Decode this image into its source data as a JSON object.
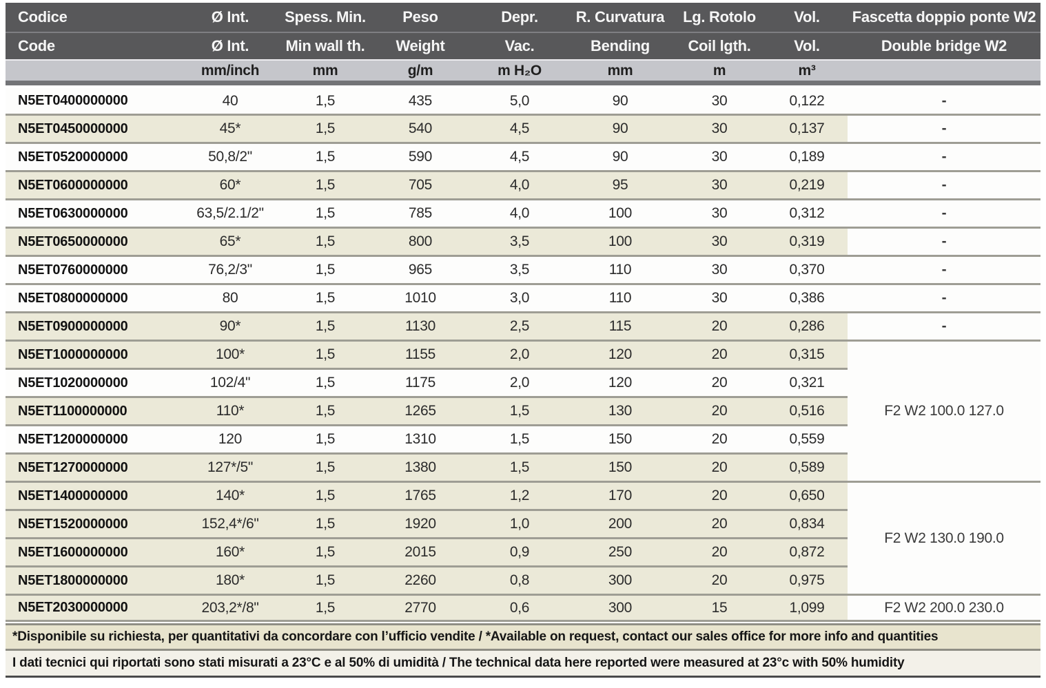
{
  "colors": {
    "header_bg": "#58585a",
    "units_bg": "#c5c6cb",
    "row_shade": "#ebe9d8",
    "row_plain": "#fdfdfc",
    "separator_line": "#9e9d94",
    "footnote_shade": "#e8e4ce"
  },
  "header": {
    "row1": [
      "Codice",
      "Ø Int.",
      "Spess. Min.",
      "Peso",
      "Depr.",
      "R. Curvatura",
      "Lg. Rotolo",
      "Vol.",
      "Fascetta doppio ponte W2"
    ],
    "row2": [
      "Code",
      "Ø Int.",
      "Min wall th.",
      "Weight",
      "Vac.",
      "Bending",
      "Coil lgth.",
      "Vol.",
      "Double bridge W2"
    ],
    "units": [
      "",
      "mm/inch",
      "mm",
      "g/m",
      "m H₂O",
      "mm",
      "m",
      "m³",
      ""
    ]
  },
  "rows": [
    {
      "code": "N5ET0400000000",
      "diameter": "40",
      "min_wall": "1,5",
      "weight": "435",
      "vacuum": "5,0",
      "bending": "90",
      "coil_length": "30",
      "volume": "0,122",
      "bridge": "-",
      "shaded": false
    },
    {
      "code": "N5ET0450000000",
      "diameter": "45*",
      "min_wall": "1,5",
      "weight": "540",
      "vacuum": "4,5",
      "bending": "90",
      "coil_length": "30",
      "volume": "0,137",
      "bridge": "-",
      "shaded": true
    },
    {
      "code": "N5ET0520000000",
      "diameter": "50,8/2\"",
      "min_wall": "1,5",
      "weight": "590",
      "vacuum": "4,5",
      "bending": "90",
      "coil_length": "30",
      "volume": "0,189",
      "bridge": "-",
      "shaded": false
    },
    {
      "code": "N5ET0600000000",
      "diameter": "60*",
      "min_wall": "1,5",
      "weight": "705",
      "vacuum": "4,0",
      "bending": "95",
      "coil_length": "30",
      "volume": "0,219",
      "bridge": "-",
      "shaded": true
    },
    {
      "code": "N5ET0630000000",
      "diameter": "63,5/2.1/2\"",
      "min_wall": "1,5",
      "weight": "785",
      "vacuum": "4,0",
      "bending": "100",
      "coil_length": "30",
      "volume": "0,312",
      "bridge": "-",
      "shaded": false
    },
    {
      "code": "N5ET0650000000",
      "diameter": "65*",
      "min_wall": "1,5",
      "weight": "800",
      "vacuum": "3,5",
      "bending": "100",
      "coil_length": "30",
      "volume": "0,319",
      "bridge": "-",
      "shaded": true
    },
    {
      "code": "N5ET0760000000",
      "diameter": "76,2/3\"",
      "min_wall": "1,5",
      "weight": "965",
      "vacuum": "3,5",
      "bending": "110",
      "coil_length": "30",
      "volume": "0,370",
      "bridge": "-",
      "shaded": false
    },
    {
      "code": "N5ET0800000000",
      "diameter": "80",
      "min_wall": "1,5",
      "weight": "1010",
      "vacuum": "3,0",
      "bending": "110",
      "coil_length": "30",
      "volume": "0,386",
      "bridge": "-",
      "shaded": false
    },
    {
      "code": "N5ET0900000000",
      "diameter": "90*",
      "min_wall": "1,5",
      "weight": "1130",
      "vacuum": "2,5",
      "bending": "115",
      "coil_length": "20",
      "volume": "0,286",
      "bridge": "-",
      "shaded": true
    },
    {
      "code": "N5ET1000000000",
      "diameter": "100*",
      "min_wall": "1,5",
      "weight": "1155",
      "vacuum": "2,0",
      "bending": "120",
      "coil_length": "20",
      "volume": "0,315",
      "shaded": true
    },
    {
      "code": "N5ET1020000000",
      "diameter": "102/4\"",
      "min_wall": "1,5",
      "weight": "1175",
      "vacuum": "2,0",
      "bending": "120",
      "coil_length": "20",
      "volume": "0,321",
      "shaded": false
    },
    {
      "code": "N5ET1100000000",
      "diameter": "110*",
      "min_wall": "1,5",
      "weight": "1265",
      "vacuum": "1,5",
      "bending": "130",
      "coil_length": "20",
      "volume": "0,516",
      "shaded": true
    },
    {
      "code": "N5ET1200000000",
      "diameter": "120",
      "min_wall": "1,5",
      "weight": "1310",
      "vacuum": "1,5",
      "bending": "150",
      "coil_length": "20",
      "volume": "0,559",
      "shaded": false
    },
    {
      "code": "N5ET1270000000",
      "diameter": "127*/5\"",
      "min_wall": "1,5",
      "weight": "1380",
      "vacuum": "1,5",
      "bending": "150",
      "coil_length": "20",
      "volume": "0,589",
      "shaded": true
    },
    {
      "code": "N5ET1400000000",
      "diameter": "140*",
      "min_wall": "1,5",
      "weight": "1765",
      "vacuum": "1,2",
      "bending": "170",
      "coil_length": "20",
      "volume": "0,650",
      "shaded": true
    },
    {
      "code": "N5ET1520000000",
      "diameter": "152,4*/6\"",
      "min_wall": "1,5",
      "weight": "1920",
      "vacuum": "1,0",
      "bending": "200",
      "coil_length": "20",
      "volume": "0,834",
      "shaded": true
    },
    {
      "code": "N5ET1600000000",
      "diameter": "160*",
      "min_wall": "1,5",
      "weight": "2015",
      "vacuum": "0,9",
      "bending": "250",
      "coil_length": "20",
      "volume": "0,872",
      "shaded": true
    },
    {
      "code": "N5ET1800000000",
      "diameter": "180*",
      "min_wall": "1,5",
      "weight": "2260",
      "vacuum": "0,8",
      "bending": "300",
      "coil_length": "20",
      "volume": "0,975",
      "shaded": true
    },
    {
      "code": "N5ET2030000000",
      "diameter": "203,2*/8\"",
      "min_wall": "1,5",
      "weight": "2770",
      "vacuum": "0,6",
      "bending": "300",
      "coil_length": "15",
      "volume": "1,099",
      "shaded": true
    }
  ],
  "bridge_groups": [
    {
      "start": 9,
      "span": 5,
      "label": "F2 W2 100.0 127.0"
    },
    {
      "start": 14,
      "span": 4,
      "label": "F2 W2 130.0 190.0"
    },
    {
      "start": 18,
      "span": 1,
      "label": "F2 W2 200.0 230.0"
    }
  ],
  "footnotes": {
    "line1": "*Disponibile su richiesta, per quantitativi da concordare con l’ufficio vendite / *Available on request, contact our sales office for more info and quantities",
    "line2": "I dati tecnici qui riportati sono stati misurati a 23°C e al 50% di umidità / The technical data here reported were measured at 23°c with 50% humidity"
  }
}
